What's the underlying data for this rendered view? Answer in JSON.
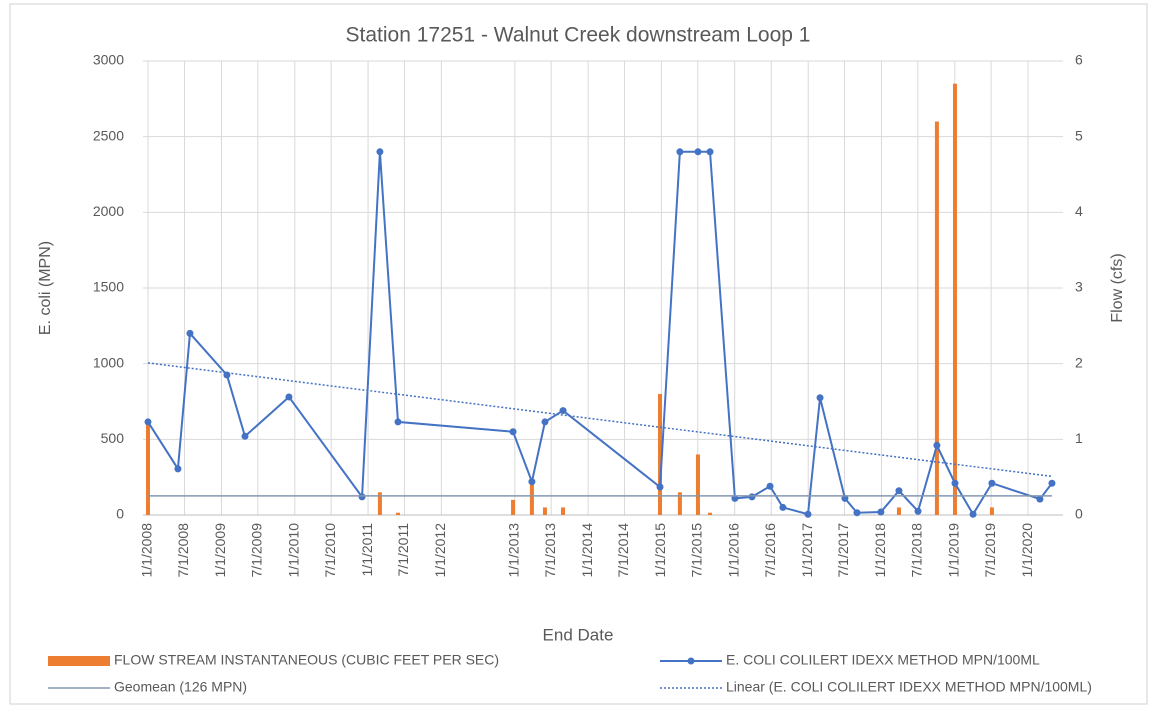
{
  "chart_data": {
    "type": "line",
    "title": "Station 17251 - Walnut Creek downstream Loop 1",
    "x_label": "End Date",
    "y_label": "E. coli (MPN)",
    "y2_label": "Flow (cfs)",
    "xlim": [
      "2008-01-01",
      "2020-06-23"
    ],
    "xticks": [
      {
        "value": "2008-01-01",
        "label": "1/1/2008"
      },
      {
        "value": "2008-07-01",
        "label": "7/1/2008"
      },
      {
        "value": "2009-01-01",
        "label": "1/1/2009"
      },
      {
        "value": "2009-07-01",
        "label": "7/1/2009"
      },
      {
        "value": "2010-01-01",
        "label": "1/1/2010"
      },
      {
        "value": "2010-07-01",
        "label": "7/1/2010"
      },
      {
        "value": "2011-01-01",
        "label": "1/1/2011"
      },
      {
        "value": "2011-07-01",
        "label": "7/1/2011"
      },
      {
        "value": "2012-01-01",
        "label": "1/1/2012"
      },
      {
        "value": "2013-01-01",
        "label": "1/1/2013"
      },
      {
        "value": "2013-07-01",
        "label": "7/1/2013"
      },
      {
        "value": "2014-01-01",
        "label": "1/1/2014"
      },
      {
        "value": "2014-07-01",
        "label": "7/1/2014"
      },
      {
        "value": "2015-01-01",
        "label": "1/1/2015"
      },
      {
        "value": "2015-07-01",
        "label": "7/1/2015"
      },
      {
        "value": "2016-01-01",
        "label": "1/1/2016"
      },
      {
        "value": "2016-07-01",
        "label": "7/1/2016"
      },
      {
        "value": "2017-01-01",
        "label": "1/1/2017"
      },
      {
        "value": "2017-07-01",
        "label": "7/1/2017"
      },
      {
        "value": "2018-01-01",
        "label": "1/1/2018"
      },
      {
        "value": "2018-07-01",
        "label": "7/1/2018"
      },
      {
        "value": "2019-01-01",
        "label": "1/1/2019"
      },
      {
        "value": "2019-07-01",
        "label": "7/1/2019"
      },
      {
        "value": "2020-01-01",
        "label": "1/1/2020"
      }
    ],
    "ylim": [
      0,
      3000
    ],
    "yticks": [
      0,
      500,
      1000,
      1500,
      2000,
      2500,
      3000
    ],
    "y2lim": [
      0,
      6
    ],
    "y2ticks": [
      0,
      1,
      2,
      3,
      4,
      5,
      6
    ],
    "grid": true,
    "legend": "bottom",
    "series": [
      {
        "name": "FLOW STREAM INSTANTANEOUS (CUBIC FEET PER SEC)",
        "type": "bar",
        "axis": "y2",
        "color": "#ed7d31",
        "x": [
          "2008-01-01",
          "2011-03-01",
          "2011-05-30",
          "2012-12-23",
          "2013-03-27",
          "2013-05-31",
          "2013-08-29",
          "2014-12-25",
          "2015-04-03",
          "2015-07-02",
          "2015-08-31",
          "2018-03-29",
          "2018-10-04",
          "2019-01-02",
          "2019-07-05"
        ],
        "values": [
          1.2,
          0.3,
          0.03,
          0.2,
          0.4,
          0.1,
          0.1,
          1.6,
          0.3,
          0.8,
          0.03,
          0.1,
          5.2,
          5.7,
          0.1
        ]
      },
      {
        "name": "E. COLI COLILERT IDEXX METHOD MPN/100ML",
        "type": "line",
        "marker": true,
        "color": "#4472c4",
        "x": [
          "2008-01-01",
          "2008-05-29",
          "2008-07-28",
          "2009-01-28",
          "2009-04-28",
          "2009-12-03",
          "2010-12-02",
          "2011-03-01",
          "2011-05-30",
          "2012-12-23",
          "2013-03-27",
          "2013-05-31",
          "2013-08-29",
          "2014-12-25",
          "2015-04-03",
          "2015-07-02",
          "2015-08-31",
          "2016-01-02",
          "2016-03-27",
          "2016-06-25",
          "2016-08-28",
          "2016-12-31",
          "2017-03-01",
          "2017-07-03",
          "2017-09-01",
          "2017-12-29",
          "2018-03-29",
          "2018-07-02",
          "2018-10-04",
          "2019-01-02",
          "2019-04-02",
          "2019-07-05",
          "2020-02-29",
          "2020-04-29"
        ],
        "values": [
          615,
          305,
          1200,
          925,
          520,
          780,
          120,
          2400,
          615,
          550,
          220,
          615,
          690,
          185,
          2400,
          2400,
          2400,
          110,
          120,
          190,
          50,
          5,
          775,
          110,
          15,
          20,
          160,
          25,
          460,
          210,
          5,
          210,
          105,
          210
        ]
      },
      {
        "name": "Geomean (126 MPN)",
        "type": "line",
        "color": "#8497b0",
        "x": [
          "2008-01-01",
          "2020-04-29"
        ],
        "values": [
          126,
          126
        ]
      },
      {
        "name": "Linear (E. COLI COLILERT IDEXX METHOD MPN/100ML)",
        "type": "line",
        "dash": "dotted",
        "color": "#4472c4",
        "x": [
          "2008-01-01",
          "2020-04-29"
        ],
        "values": [
          1005,
          255
        ]
      }
    ]
  }
}
